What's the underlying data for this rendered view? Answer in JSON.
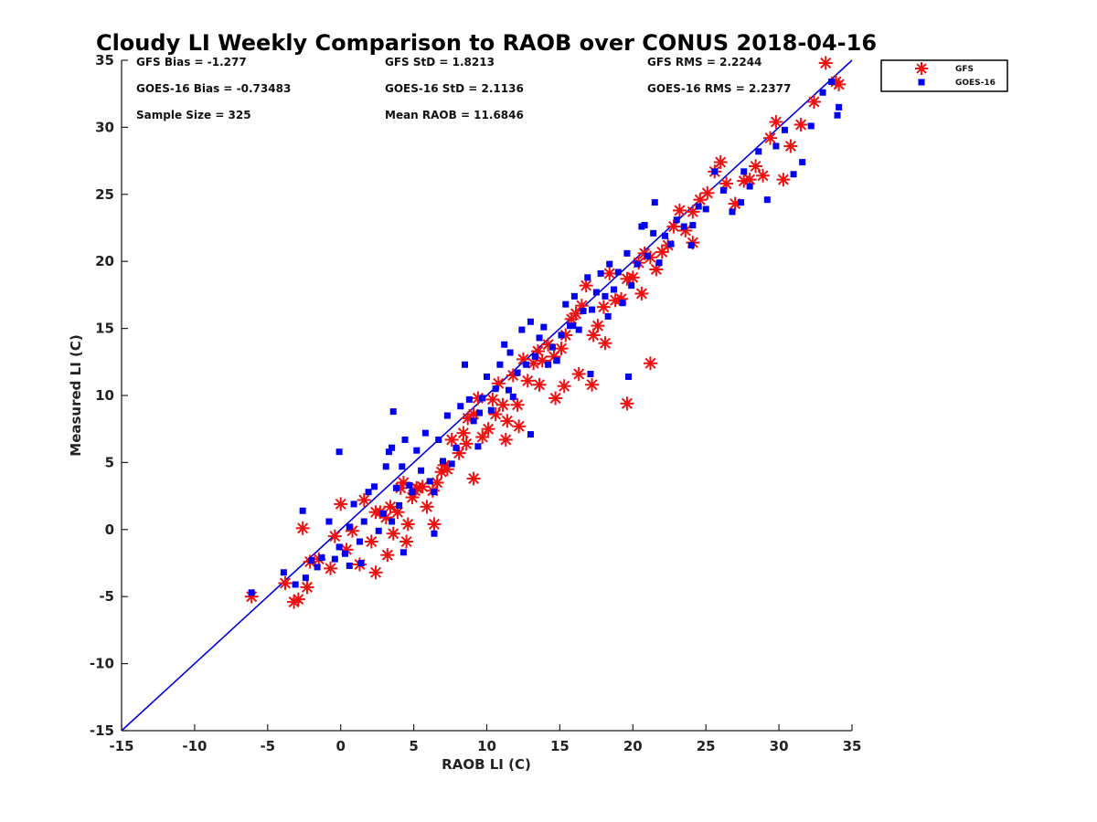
{
  "chart_data": {
    "type": "scatter",
    "title": "Cloudy LI Weekly Comparison to RAOB over CONUS 2018-04-16",
    "xlabel": "RAOB LI (C)",
    "ylabel": "Measured LI (C)",
    "xlim": [
      -15,
      35
    ],
    "ylim": [
      -15,
      35
    ],
    "x_ticks": [
      "-15",
      "-10",
      "-5",
      "0",
      "5",
      "10",
      "15",
      "20",
      "25",
      "30",
      "35"
    ],
    "y_ticks": [
      "-15",
      "-10",
      "-5",
      "0",
      "5",
      "10",
      "15",
      "20",
      "25",
      "30",
      "35"
    ],
    "grid": false,
    "legend_position": "outside-top-right",
    "reference_line": {
      "x": [
        -15,
        35
      ],
      "y": [
        -15,
        35
      ],
      "color": "#0000dd"
    },
    "stats": [
      "GFS Bias = -1.277",
      "GFS StD = 1.8213",
      "GFS RMS = 2.2244",
      "GOES-16 Bias = -0.73483",
      "GOES-16 StD = 2.1136",
      "GOES-16 RMS = 2.2377",
      "Sample Size = 325",
      "Mean RAOB = 11.6846"
    ],
    "series": [
      {
        "name": "GFS",
        "marker": "asterisk",
        "color": "#ee1111",
        "x": [
          -6.1,
          -3.8,
          -3.2,
          -2.9,
          -2.6,
          -2.3,
          -2.1,
          -1.5,
          -0.7,
          -0.4,
          0,
          0.4,
          0.8,
          1.3,
          1.6,
          2.1,
          2.4,
          2.7,
          3.1,
          3.4,
          3.6,
          3.9,
          4.1,
          4.3,
          4.6,
          4.9,
          5.2,
          5.6,
          5.9,
          6.3,
          6.6,
          6.9,
          7.3,
          7.6,
          8.1,
          8.4,
          8.7,
          9.1,
          9.4,
          9.7,
          10.1,
          10.4,
          10.8,
          11.1,
          11.4,
          11.8,
          12.1,
          12.5,
          12.8,
          13.2,
          13.5,
          13.8,
          14.2,
          14.6,
          15.1,
          15.4,
          15.8,
          16.1,
          16.5,
          16.8,
          17.3,
          17.6,
          18,
          18.4,
          18.8,
          19.2,
          19.6,
          20,
          20.4,
          20.8,
          21.2,
          21.6,
          22,
          22.4,
          22.8,
          23.2,
          23.6,
          24.1,
          24.6,
          25.1,
          25.6,
          26,
          26.4,
          27,
          27.6,
          28,
          28.4,
          28.9,
          29.4,
          29.8,
          30.3,
          30.8,
          31.5,
          32.4,
          33.2,
          33.9,
          34.1,
          19.6,
          21.2,
          17.2,
          14.7,
          9.1,
          8.6,
          6.4,
          4.5,
          2.4,
          13.6,
          15.3,
          16.3,
          12.2,
          5.1,
          7.1,
          11.3,
          18.1,
          20.6,
          24.1,
          10.6,
          3.2
        ],
        "y": [
          -5,
          -4,
          -5.4,
          -5.2,
          0.1,
          -4.3,
          -2.4,
          -2.2,
          -2.9,
          -0.5,
          1.9,
          -1.5,
          -0.1,
          -2.6,
          2.2,
          -0.9,
          -3.2,
          1.3,
          0.9,
          1.7,
          -0.3,
          1.3,
          3.1,
          3.5,
          0.4,
          2.4,
          3.1,
          3.2,
          1.7,
          2.9,
          3.5,
          4.3,
          4.5,
          6.7,
          5.7,
          7.2,
          8.3,
          8.6,
          9.8,
          6.9,
          7.5,
          9.7,
          10.9,
          9.3,
          8.1,
          11.5,
          9.3,
          12.7,
          11.1,
          12.4,
          13.3,
          12.6,
          13.8,
          12.9,
          13.5,
          14.5,
          15.7,
          16.1,
          16.7,
          18.2,
          14.5,
          15.2,
          16.6,
          19.1,
          17.1,
          17.2,
          18.7,
          18.8,
          19.9,
          20.6,
          20.3,
          19.4,
          20.7,
          21.2,
          22.6,
          23.8,
          22.3,
          23.7,
          24.6,
          25.1,
          26.7,
          27.4,
          25.8,
          24.3,
          26,
          26.1,
          27.1,
          26.4,
          29.2,
          30.4,
          26.1,
          28.6,
          30.2,
          31.9,
          34.8,
          33.4,
          33.2,
          9.4,
          12.4,
          10.8,
          9.8,
          3.8,
          6.4,
          0.4,
          -0.9,
          1.3,
          10.8,
          10.7,
          11.6,
          7.7,
          2.9,
          4.8,
          6.7,
          13.9,
          17.6,
          21.4,
          8.6,
          -1.9
        ]
      },
      {
        "name": "GOES-16",
        "marker": "square",
        "color": "#0000ee",
        "x": [
          -6.1,
          -3.9,
          -3.1,
          -2.6,
          -2.4,
          -2,
          -1.6,
          -1.3,
          -0.8,
          -0.4,
          -0.1,
          0.3,
          0.6,
          0.9,
          1.3,
          1.6,
          1.9,
          2.3,
          2.6,
          2.9,
          3.1,
          3.3,
          3.5,
          3.6,
          3.8,
          4,
          4.2,
          4.4,
          4.7,
          4.9,
          5.2,
          5.5,
          5.8,
          6.1,
          6.4,
          6.7,
          7,
          7.3,
          7.6,
          7.9,
          8.2,
          8.5,
          8.8,
          9.1,
          9.4,
          9.7,
          10,
          10.3,
          10.6,
          10.9,
          11.2,
          11.5,
          11.8,
          12.1,
          12.4,
          12.7,
          13,
          13.3,
          13.6,
          13.9,
          14.2,
          14.5,
          14.8,
          15.1,
          15.4,
          15.7,
          16,
          16.3,
          16.6,
          16.9,
          17.2,
          17.5,
          17.8,
          18.1,
          18.4,
          18.7,
          19,
          19.3,
          19.6,
          19.9,
          20.3,
          20.6,
          21,
          21.4,
          21.8,
          22.2,
          22.6,
          23,
          23.5,
          24,
          24.5,
          25,
          25.6,
          26.2,
          26.8,
          27.4,
          28,
          28.6,
          29.2,
          29.8,
          30.4,
          31,
          31.6,
          32.2,
          33,
          33.6,
          34.1,
          34,
          21.5,
          19.7,
          17.1,
          13,
          -0.1,
          0.6,
          1.4,
          3.5,
          4.3,
          6.4,
          9.5,
          11.6,
          15.9,
          18.3,
          20.8,
          24.1,
          27.6
        ],
        "y": [
          -4.7,
          -3.2,
          -4.1,
          1.4,
          -3.6,
          -2.3,
          -2.8,
          -2.1,
          0.6,
          -2.2,
          -1.3,
          -1.8,
          -2.7,
          1.9,
          -0.9,
          0.6,
          2.8,
          3.2,
          -0.1,
          1.2,
          4.7,
          5.8,
          6.1,
          8.8,
          3.1,
          1.8,
          4.7,
          6.7,
          3.3,
          2.8,
          5.9,
          4.4,
          7.2,
          3.6,
          2.8,
          6.7,
          5.1,
          8.5,
          4.9,
          6.1,
          9.2,
          12.3,
          9.7,
          8.1,
          6.2,
          9.8,
          11.4,
          8.9,
          10.5,
          12.3,
          13.8,
          10.4,
          9.9,
          11.7,
          14.9,
          12.3,
          15.5,
          12.9,
          14.3,
          15.1,
          12.3,
          13.6,
          12.6,
          14.5,
          16.8,
          15.2,
          17.4,
          14.9,
          16.3,
          18.8,
          16.4,
          17.7,
          19.1,
          17.4,
          19.8,
          17.9,
          19.2,
          16.9,
          20.6,
          18.2,
          19.8,
          22.6,
          20.4,
          22.1,
          19.9,
          21.9,
          21.3,
          23.1,
          22.6,
          21.2,
          24.1,
          23.9,
          26.7,
          25.3,
          23.7,
          24.4,
          25.6,
          28.2,
          24.6,
          28.6,
          29.8,
          26.5,
          27.4,
          30.1,
          32.6,
          33.4,
          31.5,
          30.9,
          24.4,
          11.4,
          11.6,
          7.1,
          5.8,
          0.2,
          -2.5,
          0.6,
          -1.7,
          -0.3,
          8.7,
          13.2,
          15.2,
          15.9,
          22.7,
          22.7,
          26.7
        ]
      }
    ]
  }
}
